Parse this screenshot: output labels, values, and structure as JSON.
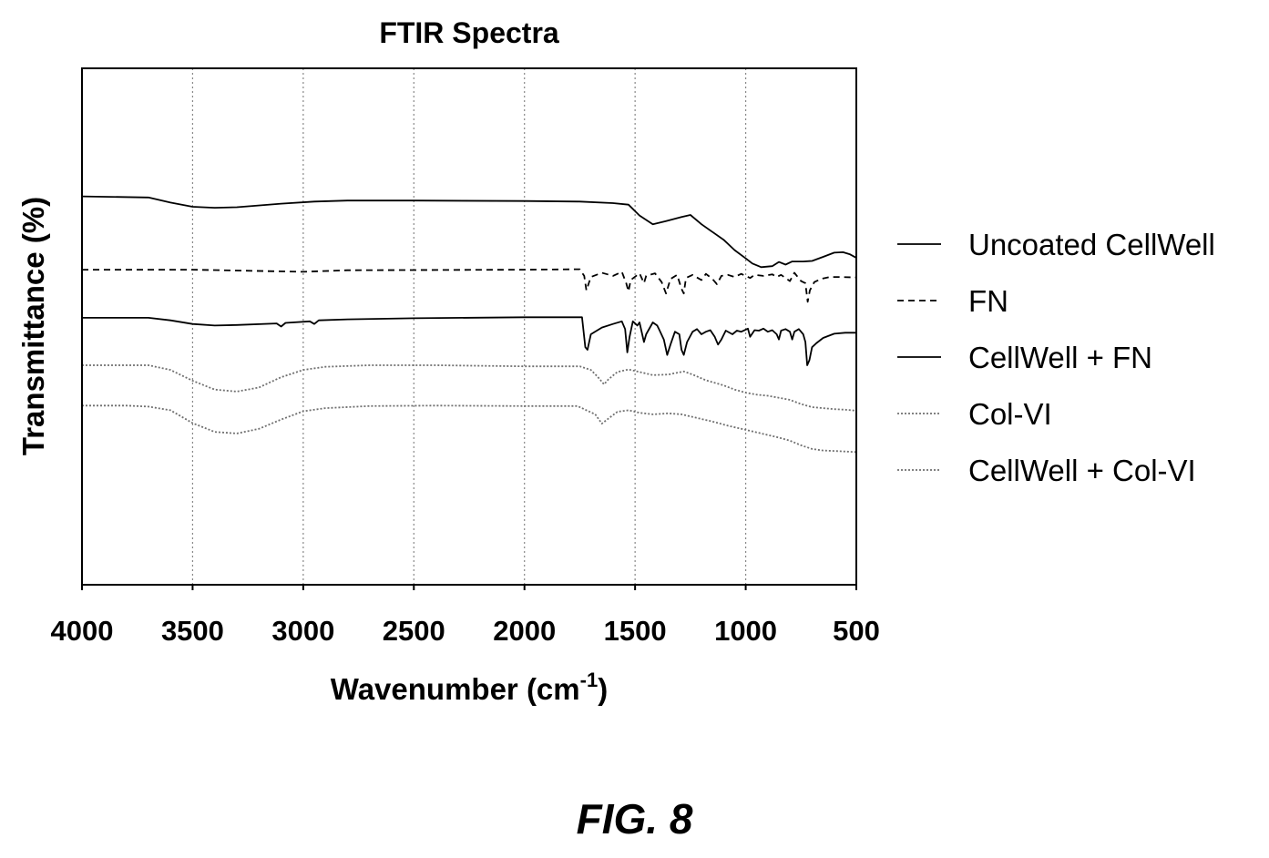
{
  "figure_caption": "FIG. 8",
  "chart_data": {
    "type": "line",
    "title": "FTIR Spectra",
    "xlabel_main": "Wavenumber (cm",
    "xlabel_sup": "-1",
    "xlabel_close": ")",
    "ylabel": "Transmittance (%)",
    "xlim": [
      4000,
      500
    ],
    "x_reversed": true,
    "x_ticks": [
      4000,
      3500,
      3000,
      2500,
      2000,
      1500,
      1000,
      500
    ],
    "ylim": [
      0,
      100
    ],
    "y_ticks_shown": false,
    "grid": "vertical dotted",
    "legend_position": "right",
    "series": [
      {
        "name": "Uncoated CellWell",
        "style": "solid",
        "color": "#000000",
        "points": [
          [
            4000,
            75.2
          ],
          [
            3700,
            75.0
          ],
          [
            3600,
            74.0
          ],
          [
            3500,
            73.2
          ],
          [
            3400,
            73.0
          ],
          [
            3300,
            73.1
          ],
          [
            3100,
            73.8
          ],
          [
            2950,
            74.2
          ],
          [
            2800,
            74.4
          ],
          [
            2500,
            74.4
          ],
          [
            2000,
            74.3
          ],
          [
            1750,
            74.2
          ],
          [
            1600,
            73.9
          ],
          [
            1530,
            73.6
          ],
          [
            1480,
            71.5
          ],
          [
            1420,
            69.8
          ],
          [
            1360,
            70.4
          ],
          [
            1290,
            71.2
          ],
          [
            1250,
            71.6
          ],
          [
            1200,
            69.8
          ],
          [
            1150,
            68.3
          ],
          [
            1100,
            66.8
          ],
          [
            1050,
            64.8
          ],
          [
            1000,
            63.2
          ],
          [
            970,
            62.2
          ],
          [
            930,
            61.5
          ],
          [
            880,
            61.7
          ],
          [
            850,
            62.5
          ],
          [
            820,
            62.0
          ],
          [
            790,
            62.6
          ],
          [
            740,
            62.6
          ],
          [
            700,
            62.7
          ],
          [
            650,
            63.5
          ],
          [
            600,
            64.3
          ],
          [
            560,
            64.4
          ],
          [
            530,
            64.0
          ],
          [
            500,
            63.3
          ]
        ]
      },
      {
        "name": "FN",
        "style": "dashed",
        "color": "#000000",
        "points": [
          [
            4000,
            61.0
          ],
          [
            3500,
            61.0
          ],
          [
            3000,
            60.6
          ],
          [
            2800,
            60.9
          ],
          [
            2000,
            61.0
          ],
          [
            1750,
            61.1
          ],
          [
            1730,
            59.8
          ],
          [
            1720,
            57.0
          ],
          [
            1700,
            59.6
          ],
          [
            1650,
            60.4
          ],
          [
            1600,
            59.8
          ],
          [
            1560,
            60.6
          ],
          [
            1540,
            58.4
          ],
          [
            1530,
            56.8
          ],
          [
            1520,
            59.0
          ],
          [
            1480,
            60.3
          ],
          [
            1460,
            58.4
          ],
          [
            1450,
            59.8
          ],
          [
            1410,
            60.3
          ],
          [
            1380,
            58.6
          ],
          [
            1360,
            56.4
          ],
          [
            1340,
            59.2
          ],
          [
            1310,
            60.0
          ],
          [
            1290,
            57.3
          ],
          [
            1280,
            56.4
          ],
          [
            1270,
            59.4
          ],
          [
            1240,
            60.0
          ],
          [
            1200,
            59.0
          ],
          [
            1180,
            60.2
          ],
          [
            1150,
            59.2
          ],
          [
            1130,
            58.2
          ],
          [
            1110,
            59.8
          ],
          [
            1080,
            60.0
          ],
          [
            1050,
            59.6
          ],
          [
            1020,
            60.2
          ],
          [
            980,
            59.4
          ],
          [
            960,
            60.0
          ],
          [
            920,
            59.8
          ],
          [
            880,
            60.1
          ],
          [
            860,
            59.6
          ],
          [
            840,
            60.0
          ],
          [
            800,
            58.8
          ],
          [
            780,
            60.4
          ],
          [
            750,
            58.8
          ],
          [
            730,
            58.4
          ],
          [
            720,
            54.8
          ],
          [
            710,
            57.0
          ],
          [
            690,
            58.6
          ],
          [
            660,
            59.2
          ],
          [
            620,
            59.6
          ],
          [
            580,
            59.6
          ],
          [
            500,
            59.5
          ]
        ]
      },
      {
        "name": "CellWell + FN",
        "style": "solid",
        "color": "#000000",
        "points": [
          [
            4000,
            51.7
          ],
          [
            3700,
            51.7
          ],
          [
            3600,
            51.2
          ],
          [
            3500,
            50.5
          ],
          [
            3400,
            50.2
          ],
          [
            3300,
            50.3
          ],
          [
            3120,
            50.6
          ],
          [
            3100,
            50.0
          ],
          [
            3080,
            50.7
          ],
          [
            2970,
            51.0
          ],
          [
            2950,
            50.5
          ],
          [
            2930,
            51.2
          ],
          [
            2800,
            51.4
          ],
          [
            2500,
            51.6
          ],
          [
            2000,
            51.8
          ],
          [
            1740,
            51.8
          ],
          [
            1725,
            46.0
          ],
          [
            1715,
            45.5
          ],
          [
            1700,
            48.5
          ],
          [
            1650,
            49.8
          ],
          [
            1600,
            50.5
          ],
          [
            1560,
            51.0
          ],
          [
            1545,
            49.5
          ],
          [
            1535,
            45.0
          ],
          [
            1525,
            48.0
          ],
          [
            1510,
            51.0
          ],
          [
            1490,
            50.2
          ],
          [
            1480,
            50.8
          ],
          [
            1460,
            47.0
          ],
          [
            1450,
            48.5
          ],
          [
            1420,
            50.8
          ],
          [
            1400,
            50.2
          ],
          [
            1390,
            49.3
          ],
          [
            1370,
            47.5
          ],
          [
            1355,
            44.5
          ],
          [
            1340,
            46.5
          ],
          [
            1320,
            49.0
          ],
          [
            1300,
            48.5
          ],
          [
            1290,
            45.5
          ],
          [
            1280,
            44.5
          ],
          [
            1265,
            47.0
          ],
          [
            1240,
            49.0
          ],
          [
            1220,
            49.5
          ],
          [
            1200,
            48.5
          ],
          [
            1180,
            49.0
          ],
          [
            1160,
            49.3
          ],
          [
            1140,
            48.0
          ],
          [
            1125,
            46.5
          ],
          [
            1110,
            47.5
          ],
          [
            1090,
            49.2
          ],
          [
            1060,
            48.5
          ],
          [
            1040,
            49.2
          ],
          [
            1020,
            49.0
          ],
          [
            990,
            49.6
          ],
          [
            980,
            48.0
          ],
          [
            960,
            49.3
          ],
          [
            940,
            49.2
          ],
          [
            920,
            49.6
          ],
          [
            900,
            49.0
          ],
          [
            880,
            49.3
          ],
          [
            860,
            48.5
          ],
          [
            850,
            47.5
          ],
          [
            840,
            49.2
          ],
          [
            820,
            49.5
          ],
          [
            800,
            49.0
          ],
          [
            790,
            47.5
          ],
          [
            780,
            49.0
          ],
          [
            760,
            49.5
          ],
          [
            740,
            48.5
          ],
          [
            730,
            47.0
          ],
          [
            722,
            42.5
          ],
          [
            712,
            43.5
          ],
          [
            700,
            46.0
          ],
          [
            680,
            46.8
          ],
          [
            650,
            47.8
          ],
          [
            600,
            48.6
          ],
          [
            550,
            48.8
          ],
          [
            500,
            48.8
          ]
        ]
      },
      {
        "name": "Col-VI",
        "style": "dotted",
        "color": "#707070",
        "points": [
          [
            4000,
            42.5
          ],
          [
            3800,
            42.5
          ],
          [
            3700,
            42.5
          ],
          [
            3600,
            41.6
          ],
          [
            3500,
            39.5
          ],
          [
            3400,
            37.8
          ],
          [
            3300,
            37.4
          ],
          [
            3200,
            38.2
          ],
          [
            3100,
            40.2
          ],
          [
            3000,
            41.6
          ],
          [
            2900,
            42.2
          ],
          [
            2700,
            42.5
          ],
          [
            2400,
            42.5
          ],
          [
            2000,
            42.3
          ],
          [
            1750,
            42.3
          ],
          [
            1700,
            41.6
          ],
          [
            1670,
            40.3
          ],
          [
            1640,
            38.8
          ],
          [
            1620,
            39.8
          ],
          [
            1580,
            41.2
          ],
          [
            1530,
            41.7
          ],
          [
            1480,
            41.2
          ],
          [
            1420,
            40.6
          ],
          [
            1350,
            40.7
          ],
          [
            1280,
            41.3
          ],
          [
            1240,
            40.7
          ],
          [
            1180,
            39.6
          ],
          [
            1100,
            38.6
          ],
          [
            1050,
            37.8
          ],
          [
            1000,
            37.2
          ],
          [
            950,
            36.8
          ],
          [
            900,
            36.6
          ],
          [
            850,
            36.2
          ],
          [
            800,
            35.8
          ],
          [
            750,
            35.0
          ],
          [
            700,
            34.4
          ],
          [
            650,
            34.2
          ],
          [
            600,
            34.0
          ],
          [
            550,
            33.9
          ],
          [
            500,
            33.7
          ]
        ]
      },
      {
        "name": "CellWell + Col-VI",
        "style": "dotted",
        "color": "#707070",
        "points": [
          [
            4000,
            34.7
          ],
          [
            3800,
            34.7
          ],
          [
            3700,
            34.5
          ],
          [
            3600,
            33.8
          ],
          [
            3500,
            31.3
          ],
          [
            3400,
            29.6
          ],
          [
            3300,
            29.3
          ],
          [
            3200,
            30.2
          ],
          [
            3100,
            32.0
          ],
          [
            3000,
            33.6
          ],
          [
            2900,
            34.2
          ],
          [
            2700,
            34.6
          ],
          [
            2400,
            34.7
          ],
          [
            2000,
            34.6
          ],
          [
            1760,
            34.6
          ],
          [
            1720,
            33.8
          ],
          [
            1680,
            33.0
          ],
          [
            1650,
            31.2
          ],
          [
            1620,
            32.2
          ],
          [
            1580,
            33.5
          ],
          [
            1530,
            33.8
          ],
          [
            1480,
            33.3
          ],
          [
            1420,
            33.0
          ],
          [
            1350,
            33.2
          ],
          [
            1290,
            33.0
          ],
          [
            1230,
            32.4
          ],
          [
            1150,
            31.6
          ],
          [
            1080,
            30.8
          ],
          [
            1000,
            30.0
          ],
          [
            950,
            29.5
          ],
          [
            900,
            29.0
          ],
          [
            850,
            28.5
          ],
          [
            800,
            27.9
          ],
          [
            750,
            27.0
          ],
          [
            700,
            26.3
          ],
          [
            650,
            26.0
          ],
          [
            600,
            25.9
          ],
          [
            550,
            25.8
          ],
          [
            500,
            25.7
          ]
        ]
      }
    ]
  }
}
